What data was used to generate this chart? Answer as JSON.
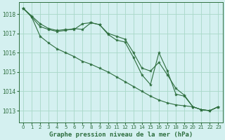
{
  "title": "Graphe pression niveau de la mer (hPa)",
  "bg_color": "#d4f0f0",
  "plot_bg_color": "#d4f0f0",
  "grid_color": "#a8d8c8",
  "line_color": "#2d6e3e",
  "xlim": [
    -0.5,
    23.5
  ],
  "ylim": [
    1012.4,
    1018.6
  ],
  "yticks": [
    1013,
    1014,
    1015,
    1016,
    1017,
    1018
  ],
  "xticks": [
    0,
    1,
    2,
    3,
    4,
    5,
    6,
    7,
    8,
    9,
    10,
    11,
    12,
    13,
    14,
    15,
    16,
    17,
    18,
    19,
    20,
    21,
    22,
    23
  ],
  "series1_x": [
    0,
    1,
    2,
    3,
    4,
    5,
    6,
    7,
    8,
    9,
    10,
    11,
    12,
    13,
    14,
    15,
    16,
    17,
    18,
    19,
    20,
    21,
    22,
    23
  ],
  "series1_y": [
    1018.3,
    1017.9,
    1017.5,
    1017.25,
    1017.15,
    1017.2,
    1017.2,
    1017.5,
    1017.55,
    1017.45,
    1017.0,
    1016.85,
    1016.7,
    1016.0,
    1015.2,
    1015.05,
    1015.5,
    1014.85,
    1014.15,
    1013.8,
    1013.2,
    1013.05,
    1013.0,
    1013.2
  ],
  "series2_x": [
    0,
    1,
    2,
    3,
    4,
    5,
    6,
    7,
    8,
    9,
    10,
    11,
    12,
    13,
    14,
    15,
    16,
    17,
    18,
    19,
    20,
    21,
    22,
    23
  ],
  "series2_y": [
    1018.3,
    1017.85,
    1017.35,
    1017.2,
    1017.1,
    1017.15,
    1017.25,
    1017.2,
    1017.55,
    1017.45,
    1016.95,
    1016.65,
    1016.55,
    1015.75,
    1014.85,
    1014.35,
    1016.0,
    1015.05,
    1013.85,
    1013.75,
    1013.2,
    1013.05,
    1013.0,
    1013.2
  ],
  "series3_x": [
    0,
    1,
    2,
    3,
    4,
    5,
    6,
    7,
    8,
    9,
    10,
    11,
    12,
    13,
    14,
    15,
    16,
    17,
    18,
    19,
    20,
    21,
    22,
    23
  ],
  "series3_y": [
    1018.3,
    1017.85,
    1016.85,
    1016.5,
    1016.2,
    1016.0,
    1015.8,
    1015.55,
    1015.4,
    1015.2,
    1015.0,
    1014.75,
    1014.5,
    1014.25,
    1014.0,
    1013.75,
    1013.55,
    1013.4,
    1013.3,
    1013.25,
    1013.2,
    1013.05,
    1013.0,
    1013.2
  ]
}
